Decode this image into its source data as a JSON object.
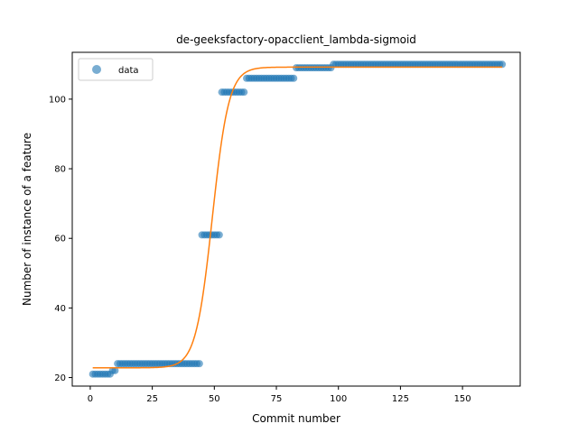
{
  "chart_data": {
    "type": "scatter",
    "title": "de-geeksfactory-opacclient_lambda-sigmoid",
    "xlabel": "Commit number",
    "ylabel": "Number of instance of a feature",
    "xlim": [
      -7.25,
      173.25
    ],
    "ylim": [
      17.55,
      113.45
    ],
    "x_ticks": [
      0,
      25,
      50,
      75,
      100,
      125,
      150
    ],
    "y_ticks": [
      20,
      40,
      60,
      80,
      100
    ],
    "legend": {
      "position": "top-left",
      "entries": [
        "data"
      ]
    },
    "grid": false,
    "series": [
      {
        "name": "data",
        "kind": "scatter",
        "color": "#1f77b4",
        "opacity": 0.6,
        "segments": [
          {
            "x_start": 1,
            "x_end": 8,
            "y": 21
          },
          {
            "x_start": 9,
            "x_end": 10,
            "y": 22
          },
          {
            "x_start": 11,
            "x_end": 44,
            "y": 24
          },
          {
            "x_start": 45,
            "x_end": 52,
            "y": 61
          },
          {
            "x_start": 53,
            "x_end": 62,
            "y": 102
          },
          {
            "x_start": 63,
            "x_end": 82,
            "y": 106
          },
          {
            "x_start": 83,
            "x_end": 97,
            "y": 109
          },
          {
            "x_start": 98,
            "x_end": 166,
            "y": 110
          }
        ]
      },
      {
        "name": "",
        "kind": "line",
        "color": "#ff7f0e",
        "model": "sigmoid",
        "params": {
          "lower": 22.8,
          "upper": 109.2,
          "midpoint": 49.2,
          "rate": 0.3
        },
        "x_range": [
          1,
          166
        ]
      }
    ]
  }
}
